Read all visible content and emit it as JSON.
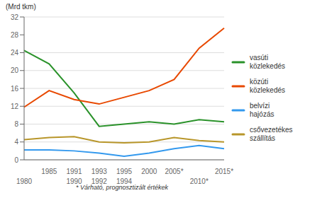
{
  "chart_data": {
    "type": "line",
    "ylabel": "(Mrd tkm)",
    "categories": [
      [
        null,
        "1980"
      ],
      [
        "1985",
        null
      ],
      [
        "1991",
        "1990"
      ],
      [
        "1993",
        "1992"
      ],
      [
        "1995",
        "1994"
      ],
      [
        "2000",
        null
      ],
      [
        "2005*",
        null
      ],
      [
        null,
        "2010*"
      ],
      [
        "2015*",
        null
      ]
    ],
    "series": [
      {
        "name": "vasúti közlekedés",
        "color": "#2a922a",
        "values": [
          24.5,
          21.5,
          15.0,
          7.5,
          8.0,
          8.5,
          8.0,
          9.0,
          8.5
        ]
      },
      {
        "name": "közúti közlekedés",
        "color": "#e84800",
        "values": [
          11.8,
          15.5,
          13.5,
          12.5,
          14.0,
          15.5,
          18.0,
          25.0,
          29.5
        ]
      },
      {
        "name": "belvízi hajózás",
        "color": "#3399ee",
        "values": [
          2.2,
          2.2,
          2.0,
          1.5,
          0.8,
          1.5,
          2.5,
          3.2,
          2.5
        ]
      },
      {
        "name": "csővezetékes szállítás",
        "color": "#b8962a",
        "values": [
          4.5,
          5.0,
          5.2,
          4.0,
          3.8,
          4.0,
          5.0,
          4.3,
          4.0
        ]
      }
    ],
    "ylim": [
      0,
      32
    ],
    "yticks": [
      0,
      4,
      8,
      12,
      16,
      20,
      24,
      28,
      32
    ],
    "grid": true,
    "legend": "right",
    "annotations": [
      "* Várható, prognosztizált értékek"
    ]
  }
}
